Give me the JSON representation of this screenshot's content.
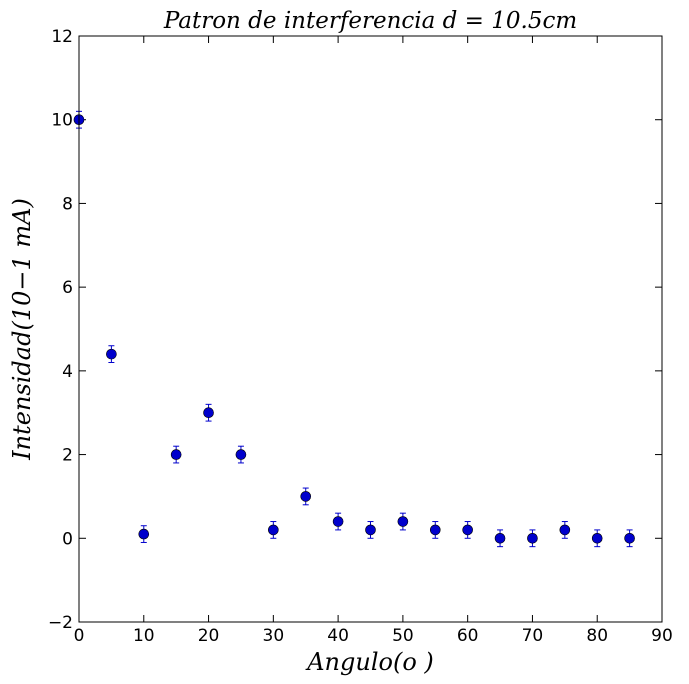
{
  "chart_data": {
    "type": "scatter",
    "title": "Patron de interferencia d = 10.5cm",
    "xlabel": "Angulo(o )",
    "ylabel": "Intensidad(10−1 mA)",
    "xlim": [
      0,
      90
    ],
    "ylim": [
      -2,
      12
    ],
    "x_ticks": [
      0,
      10,
      20,
      30,
      40,
      50,
      60,
      70,
      80,
      90
    ],
    "y_ticks": [
      -2,
      0,
      2,
      4,
      6,
      8,
      10,
      12
    ],
    "grid": false,
    "legend": "none",
    "series": [
      {
        "color": "#0000cc",
        "error": 0.2,
        "points": [
          {
            "x": 0,
            "y": 10
          },
          {
            "x": 5,
            "y": 4.4
          },
          {
            "x": 10,
            "y": 0.1
          },
          {
            "x": 15,
            "y": 2
          },
          {
            "x": 20,
            "y": 3
          },
          {
            "x": 25,
            "y": 2
          },
          {
            "x": 30,
            "y": 0.2
          },
          {
            "x": 35,
            "y": 1
          },
          {
            "x": 40,
            "y": 0.4
          },
          {
            "x": 45,
            "y": 0.2
          },
          {
            "x": 50,
            "y": 0.4
          },
          {
            "x": 55,
            "y": 0.2
          },
          {
            "x": 60,
            "y": 0.2
          },
          {
            "x": 65,
            "y": 0
          },
          {
            "x": 70,
            "y": 0
          },
          {
            "x": 75,
            "y": 0.2
          },
          {
            "x": 80,
            "y": 0
          },
          {
            "x": 85,
            "y": 0
          }
        ]
      }
    ]
  }
}
